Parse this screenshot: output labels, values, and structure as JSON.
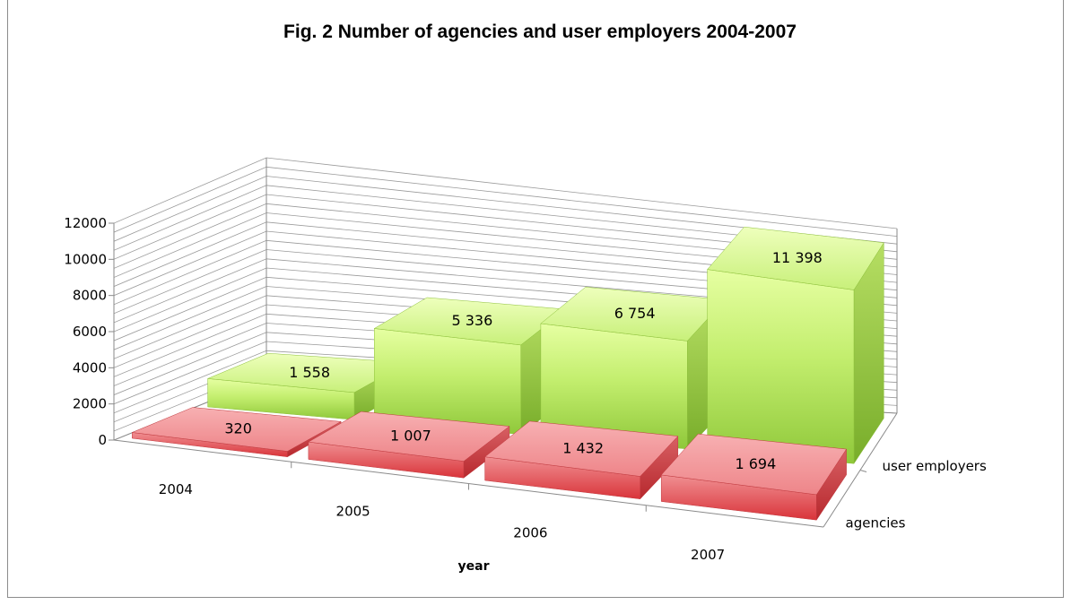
{
  "chart_data": {
    "type": "bar",
    "title": "Fig. 2 Number of agencies and user employers 2004-2007",
    "xlabel": "year",
    "ylabel": "",
    "categories": [
      "2004",
      "2005",
      "2006",
      "2007"
    ],
    "ylim": [
      0,
      12000
    ],
    "yticks": [
      "0",
      "2000",
      "4000",
      "6000",
      "8000",
      "10000",
      "12000"
    ],
    "grid": true,
    "view": "3d",
    "series": [
      {
        "name": "agencies",
        "values": [
          320,
          1007,
          1432,
          1694
        ],
        "labels": [
          "320",
          "1 007",
          "1 432",
          "1 694"
        ],
        "color": "#e8595e"
      },
      {
        "name": "user employers",
        "values": [
          1558,
          5336,
          6754,
          11398
        ],
        "labels": [
          "1 558",
          "5 336",
          "6 754",
          "11 398"
        ],
        "color": "#9fd640"
      }
    ]
  }
}
